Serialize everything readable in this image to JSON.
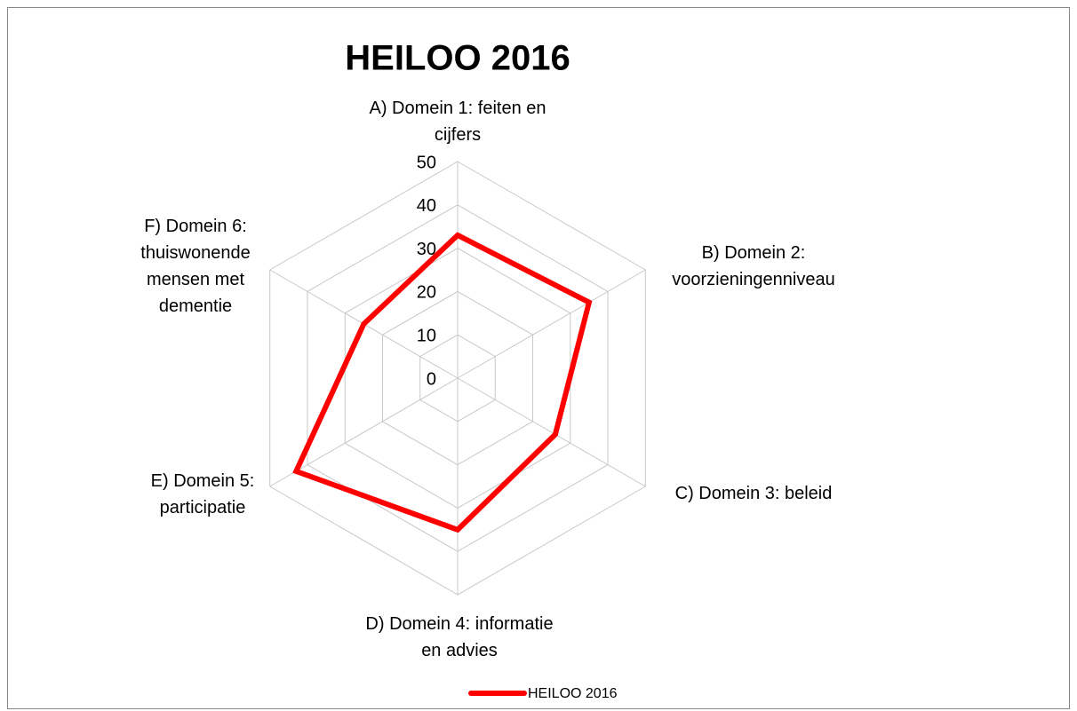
{
  "chart_data": {
    "type": "radar",
    "title": "HEILOO 2016",
    "categories": [
      "A) Domein 1: feiten en cijfers",
      "B) Domein 2: voorzieningenniveau",
      "C) Domein 3: beleid",
      "D) Domein 4: informatie en advies",
      "E) Domein 5: participatie",
      "F) Domein 6: thuiswonende mensen met dementie"
    ],
    "series": [
      {
        "name": "HEILOO 2016",
        "color": "#ff0000",
        "values": [
          33,
          35,
          26,
          35,
          43,
          25
        ]
      }
    ],
    "ylim": [
      0,
      50
    ],
    "yticks": [
      0,
      10,
      20,
      30,
      40,
      50
    ],
    "grid": true,
    "legend": "bottom"
  }
}
